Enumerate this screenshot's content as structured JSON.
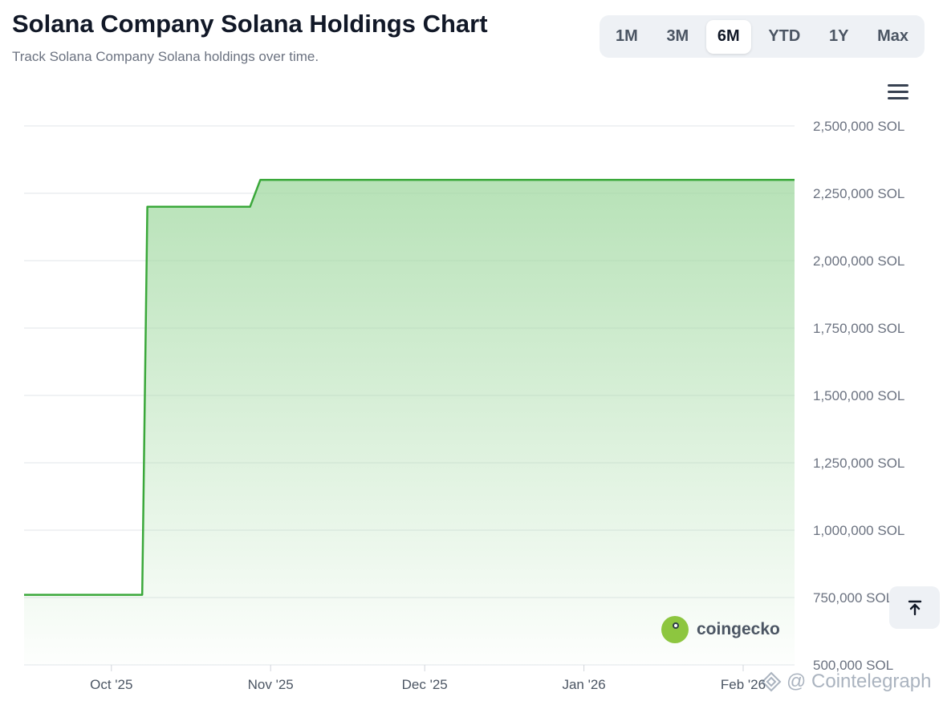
{
  "header": {
    "title": "Solana Company Solana Holdings Chart",
    "subtitle": "Track Solana Company Solana holdings over time."
  },
  "range_buttons": [
    {
      "label": "1M",
      "active": false
    },
    {
      "label": "3M",
      "active": false
    },
    {
      "label": "6M",
      "active": true
    },
    {
      "label": "YTD",
      "active": false
    },
    {
      "label": "1Y",
      "active": false
    },
    {
      "label": "Max",
      "active": false
    }
  ],
  "icons": {
    "menu": "hamburger-menu-icon",
    "scroll_top": "arrow-up-to-line-icon",
    "coingecko": "coingecko-logo",
    "credit": "cointelegraph-logo"
  },
  "watermark": {
    "text": "coingecko"
  },
  "credit": {
    "text": "@ Cointelegraph"
  },
  "colors": {
    "line": "#3aa83a",
    "fill": "#9fd89f"
  },
  "chart_data": {
    "type": "area",
    "title": "Solana Company Solana Holdings Chart",
    "xlabel": "",
    "ylabel": "",
    "x_ticks": [
      "Oct '25",
      "Nov '25",
      "Dec '25",
      "Jan '26",
      "Feb '26"
    ],
    "y_ticks": [
      "500,000 SOL",
      "750,000 SOL",
      "1,000,000 SOL",
      "1,250,000 SOL",
      "1,500,000 SOL",
      "1,750,000 SOL",
      "2,000,000 SOL",
      "2,250,000 SOL",
      "2,500,000 SOL"
    ],
    "ylim": [
      500000,
      2500000
    ],
    "xlim": [
      "2025-09-14",
      "2026-02-11"
    ],
    "grid": true,
    "series": [
      {
        "x": [
          "2025-09-14",
          "2025-10-07",
          "2025-10-08",
          "2025-10-28",
          "2025-10-30",
          "2026-02-11"
        ],
        "values": [
          760000,
          760000,
          2200000,
          2200000,
          2300000,
          2300000
        ]
      }
    ]
  }
}
